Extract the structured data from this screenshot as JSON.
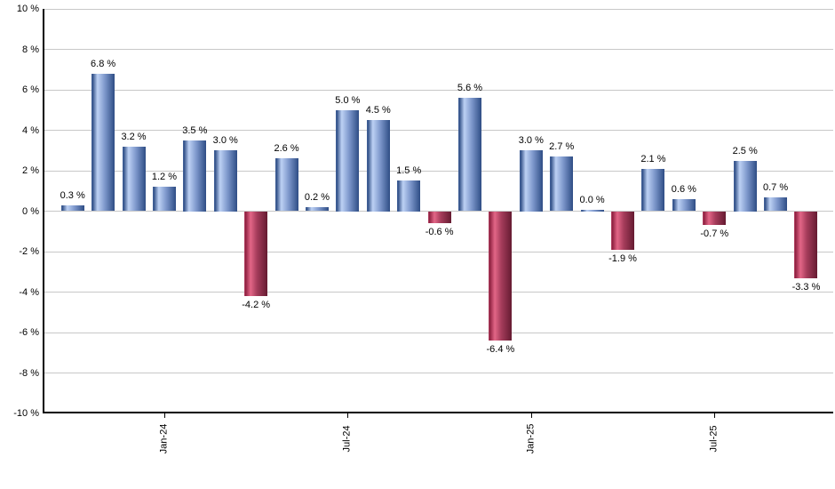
{
  "chart_data": {
    "type": "bar",
    "title": "",
    "xlabel": "",
    "ylabel": "",
    "ylim": [
      -10,
      10
    ],
    "grid": true,
    "legend": false,
    "values": [
      0.3,
      6.8,
      3.2,
      1.2,
      3.5,
      3.0,
      -4.2,
      2.6,
      0.2,
      5.0,
      4.5,
      1.5,
      -0.6,
      5.6,
      -6.4,
      3.0,
      2.7,
      0.0,
      -1.9,
      2.1,
      0.6,
      -0.7,
      2.5,
      0.7,
      -3.3
    ],
    "bar_labels": [
      "0.3 %",
      "6.8 %",
      "3.2 %",
      "1.2 %",
      "3.5 %",
      "3.0 %",
      "-4.2 %",
      "2.6 %",
      "0.2 %",
      "5.0 %",
      "4.5 %",
      "1.5 %",
      "-0.6 %",
      "5.6 %",
      "-6.4 %",
      "3.0 %",
      "2.7 %",
      "0.0 %",
      "-1.9 %",
      "2.1 %",
      "0.6 %",
      "-0.7 %",
      "2.5 %",
      "0.7 %",
      "-3.3 %"
    ],
    "y_ticks": [
      {
        "value": 10,
        "label": "10 %"
      },
      {
        "value": 8,
        "label": "8 %"
      },
      {
        "value": 6,
        "label": "6 %"
      },
      {
        "value": 4,
        "label": "4 %"
      },
      {
        "value": 2,
        "label": "2 %"
      },
      {
        "value": 0,
        "label": "0 %"
      },
      {
        "value": -2,
        "label": "-2 %"
      },
      {
        "value": -4,
        "label": "-4 %"
      },
      {
        "value": -6,
        "label": "-6 %"
      },
      {
        "value": -8,
        "label": "-8 %"
      },
      {
        "value": -10,
        "label": "-10 %"
      }
    ],
    "x_ticks": [
      {
        "bar_index": 3,
        "label": "Jan-24"
      },
      {
        "bar_index": 9,
        "label": "Jul-24"
      },
      {
        "bar_index": 15,
        "label": "Jan-25"
      },
      {
        "bar_index": 21,
        "label": "Jul-25"
      }
    ],
    "colors": {
      "positive_bar": "#6d8cc4",
      "positive_highlight": "#bdd1f4",
      "positive_dark": "#2e4d85",
      "negative_bar": "#b04764",
      "negative_highlight": "#e36687",
      "negative_dark": "#651b31",
      "gridline": "#c8c8c8",
      "axis": "#000000",
      "label_text": "#000000",
      "background": "#ffffff"
    }
  }
}
